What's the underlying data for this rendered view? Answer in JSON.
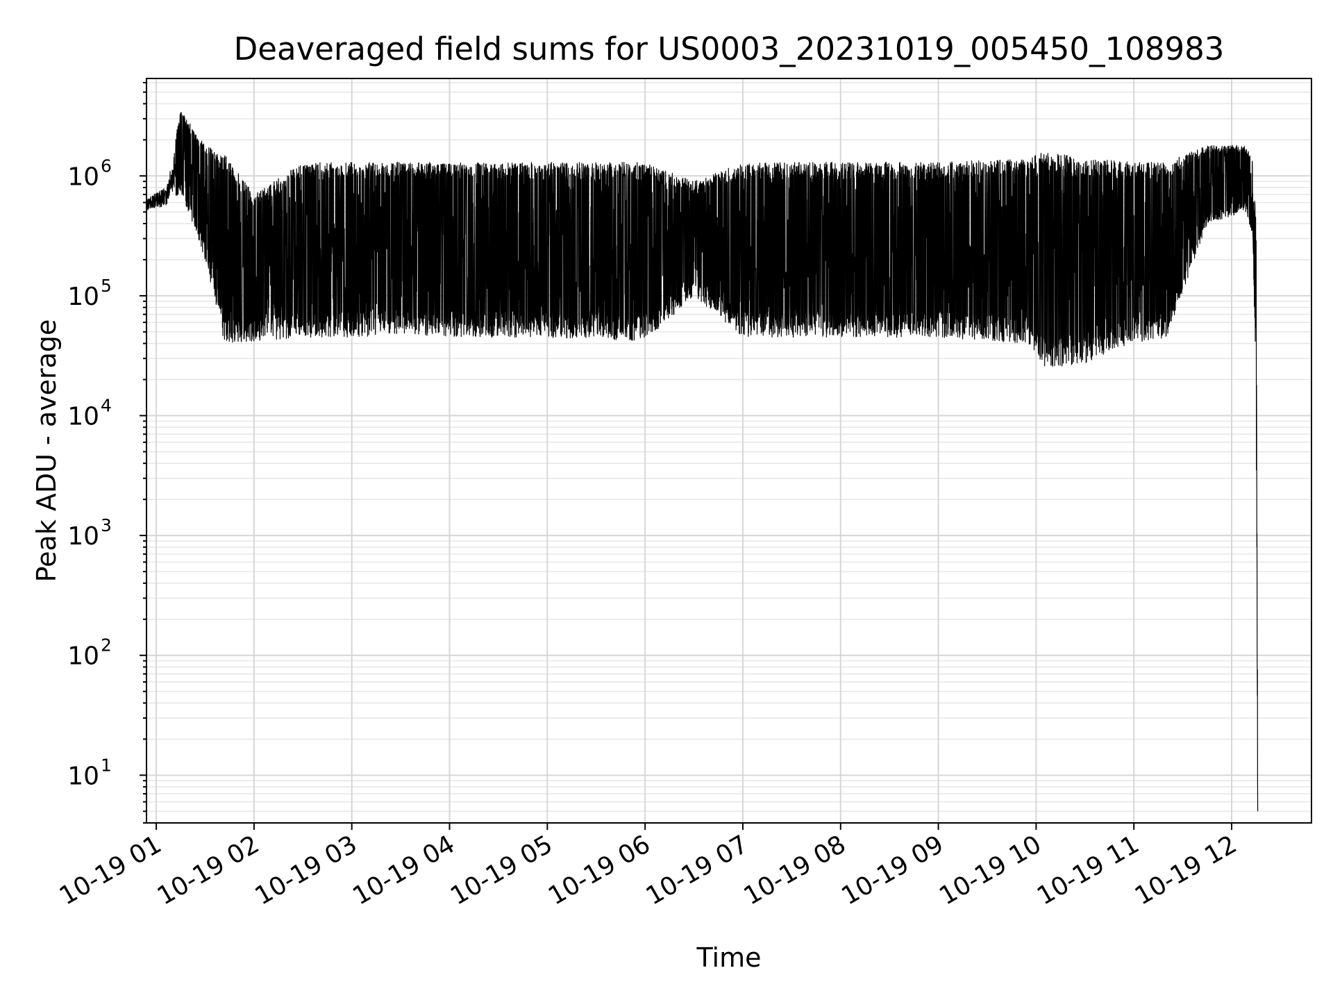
{
  "chart_data": {
    "type": "line",
    "title": "Deaveraged field sums for US0003_20231019_005450_108983",
    "xlabel": "Time",
    "ylabel": "Peak ADU - average",
    "yscale": "log",
    "grid": true,
    "xlim": [
      "2023-10-19 00:54",
      "2023-10-19 12:49"
    ],
    "ylim": [
      4,
      6500000
    ],
    "x_ticks": [
      "10-19 01",
      "10-19 02",
      "10-19 03",
      "10-19 04",
      "10-19 05",
      "10-19 06",
      "10-19 07",
      "10-19 08",
      "10-19 09",
      "10-19 10",
      "10-19 11",
      "10-19 12"
    ],
    "y_ticks": [
      {
        "base": "10",
        "exp": "1",
        "value": 10
      },
      {
        "base": "10",
        "exp": "2",
        "value": 100
      },
      {
        "base": "10",
        "exp": "3",
        "value": 1000
      },
      {
        "base": "10",
        "exp": "4",
        "value": 10000
      },
      {
        "base": "10",
        "exp": "5",
        "value": 100000
      },
      {
        "base": "10",
        "exp": "6",
        "value": 1000000
      }
    ],
    "series": [
      {
        "color": "#000000",
        "description_of_shape": "dense oscillating series",
        "envelope": [
          {
            "x": "2023-10-19 00:54",
            "low": 480000,
            "high": 700000
          },
          {
            "x": "2023-10-19 01:06",
            "low": 500000,
            "high": 900000
          },
          {
            "x": "2023-10-19 01:15",
            "low": 750000,
            "high": 3500000
          },
          {
            "x": "2023-10-19 01:30",
            "low": 200000,
            "high": 1800000
          },
          {
            "x": "2023-10-19 01:42",
            "low": 40000,
            "high": 1500000
          },
          {
            "x": "2023-10-19 02:00",
            "low": 42000,
            "high": 700000
          },
          {
            "x": "2023-10-19 02:30",
            "low": 45000,
            "high": 1300000
          },
          {
            "x": "2023-10-19 03:00",
            "low": 45000,
            "high": 1300000
          },
          {
            "x": "2023-10-19 03:30",
            "low": 48000,
            "high": 1300000
          },
          {
            "x": "2023-10-19 04:00",
            "low": 45000,
            "high": 1300000
          },
          {
            "x": "2023-10-19 05:00",
            "low": 45000,
            "high": 1300000
          },
          {
            "x": "2023-10-19 06:00",
            "low": 42000,
            "high": 1300000
          },
          {
            "x": "2023-10-19 06:30",
            "low": 100000,
            "high": 900000
          },
          {
            "x": "2023-10-19 07:00",
            "low": 45000,
            "high": 1300000
          },
          {
            "x": "2023-10-19 08:00",
            "low": 45000,
            "high": 1300000
          },
          {
            "x": "2023-10-19 09:00",
            "low": 45000,
            "high": 1300000
          },
          {
            "x": "2023-10-19 09:55",
            "low": 40000,
            "high": 1400000
          },
          {
            "x": "2023-10-19 10:05",
            "low": 25000,
            "high": 1600000
          },
          {
            "x": "2023-10-19 10:30",
            "low": 27000,
            "high": 1400000
          },
          {
            "x": "2023-10-19 11:00",
            "low": 40000,
            "high": 1300000
          },
          {
            "x": "2023-10-19 11:20",
            "low": 45000,
            "high": 1300000
          },
          {
            "x": "2023-10-19 11:45",
            "low": 400000,
            "high": 1800000
          },
          {
            "x": "2023-10-19 12:09",
            "low": 500000,
            "high": 1800000
          },
          {
            "x": "2023-10-19 12:13",
            "low": 300000,
            "high": 1300000
          },
          {
            "x": "2023-10-19 12:15",
            "low": 15000,
            "high": 400000
          },
          {
            "x": "2023-10-19 12:16",
            "low": 5,
            "high": 15
          }
        ]
      }
    ]
  }
}
